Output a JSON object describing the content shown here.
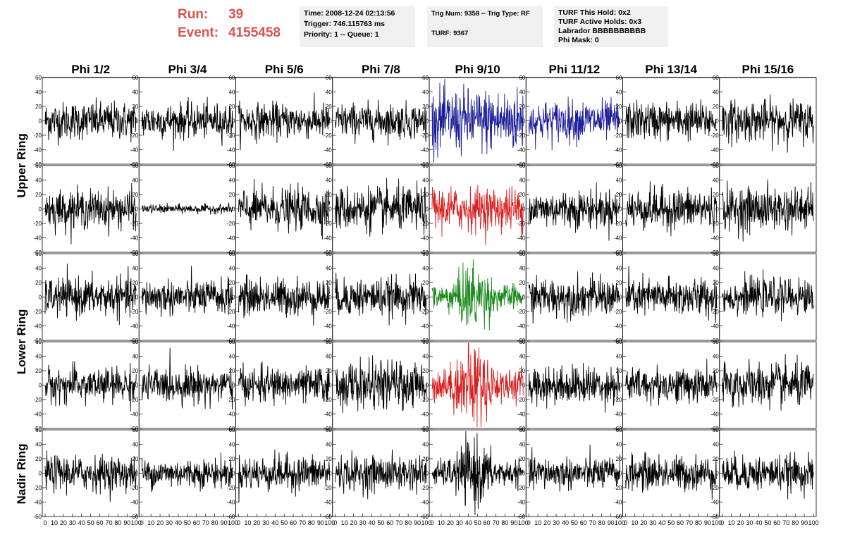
{
  "header": {
    "run_label": "Run:",
    "run_value": "39",
    "event_label": "Event:",
    "event_value": "4155458",
    "time_line": "Time: 2008-12-24 02:13:56",
    "trigger_line": "Trigger: 746.115763 ms",
    "priority_line": "Priority: 1 -- Queue: 1",
    "trig_line": "Trig Num: 9358 -- Trig Type: RF",
    "turf_line": "TURF: 9367",
    "turf_hold_line": "TURF This Hold: 0x2",
    "turf_active_line": "TURF Active Holds: 0x3",
    "labrador_line": "Labrador BBBBBBBBBB",
    "phi_mask_line": "Phi Mask: 0"
  },
  "chart_data": {
    "type": "line",
    "column_titles": [
      "Phi 1/2",
      "Phi 3/4",
      "Phi 5/6",
      "Phi 7/8",
      "Phi 9/10",
      "Phi 11/12",
      "Phi 13/14",
      "Phi 15/16"
    ],
    "ring_labels": [
      "Upper Ring",
      "Lower Ring",
      "Nadir Ring"
    ],
    "ylim": [
      -60,
      60
    ],
    "xlim": [
      0,
      100
    ],
    "y_ticks": [
      "60",
      "40",
      "20",
      "0",
      "-20",
      "-40",
      "-60"
    ],
    "x_ticks": [
      "0",
      "10",
      "20",
      "30",
      "40",
      "50",
      "60",
      "70",
      "80",
      "90",
      "100"
    ],
    "samples_per_trace": 260,
    "trace_rms": [
      [
        13,
        12,
        12,
        12,
        22,
        14,
        13,
        14
      ],
      [
        13,
        3,
        14,
        15,
        15,
        13,
        14,
        15
      ],
      [
        13,
        12,
        13,
        13,
        14,
        13,
        13,
        12
      ],
      [
        12,
        12,
        12,
        16,
        18,
        13,
        12,
        15
      ],
      [
        12,
        10,
        12,
        12,
        14,
        11,
        12,
        12
      ]
    ],
    "trace_colors": [
      [
        "#000000",
        "#000000",
        "#000000",
        "#000000",
        "#1f1f9a",
        "#1f1f9a",
        "#000000",
        "#000000"
      ],
      [
        "#000000",
        "#000000",
        "#000000",
        "#000000",
        "#d62020",
        "#000000",
        "#000000",
        "#000000"
      ],
      [
        "#000000",
        "#000000",
        "#000000",
        "#000000",
        "#1a8a1a",
        "#000000",
        "#000000",
        "#000000"
      ],
      [
        "#000000",
        "#000000",
        "#000000",
        "#000000",
        "#d62020",
        "#000000",
        "#000000",
        "#000000"
      ],
      [
        "#000000",
        "#000000",
        "#000000",
        "#000000",
        "#000000",
        "#000000",
        "#000000",
        "#000000"
      ]
    ],
    "burst_channel": [
      4,
      4
    ],
    "grid": false
  }
}
